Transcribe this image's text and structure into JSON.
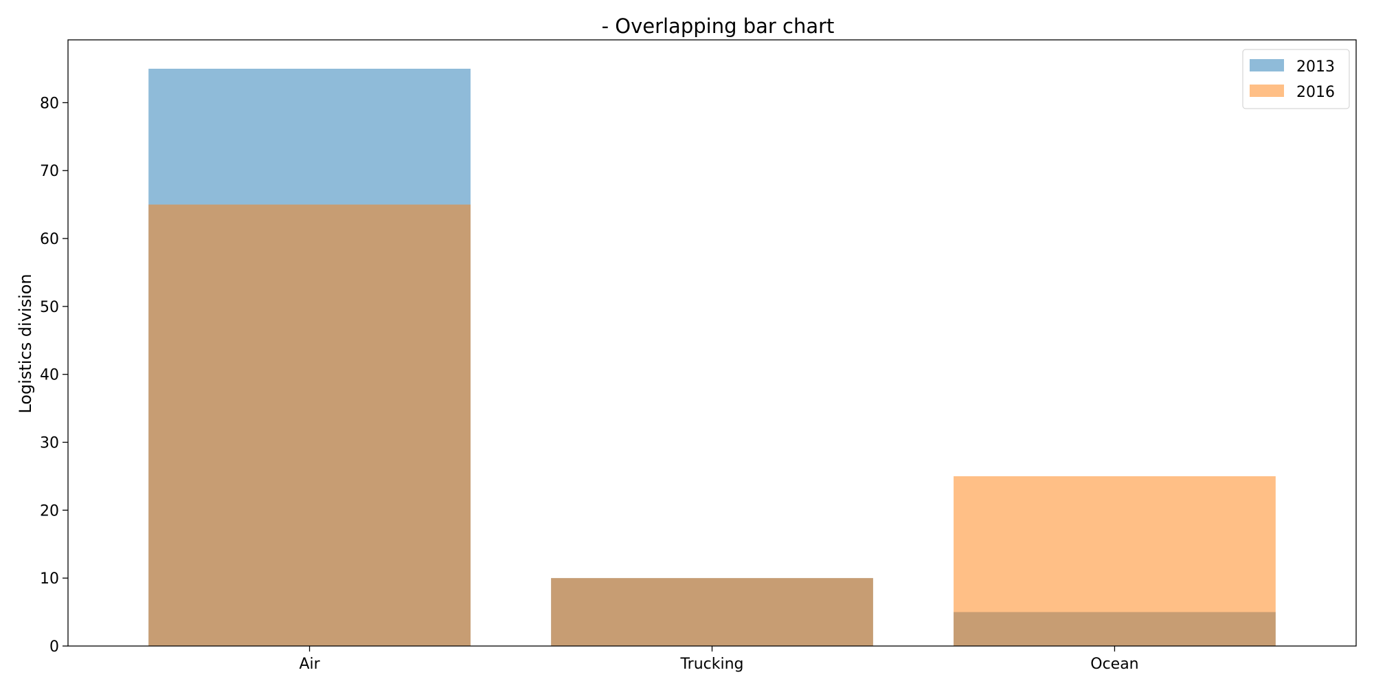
{
  "chart_data": {
    "type": "bar",
    "title": "- Overlapping bar chart",
    "xlabel": "",
    "ylabel": "Logistics division",
    "categories": [
      "Air",
      "Trucking",
      "Ocean"
    ],
    "series": [
      {
        "name": "2013",
        "values": [
          85,
          10,
          5
        ],
        "color": "#1f77b4",
        "opacity": 0.5
      },
      {
        "name": "2016",
        "values": [
          65,
          10,
          25
        ],
        "color": "#ff7f0e",
        "opacity": 0.5
      }
    ],
    "ylim": [
      0,
      89.25
    ],
    "yticks": [
      0,
      10,
      20,
      30,
      40,
      50,
      60,
      70,
      80
    ],
    "grid": false,
    "legend_position": "top-right",
    "overlapping": true
  }
}
